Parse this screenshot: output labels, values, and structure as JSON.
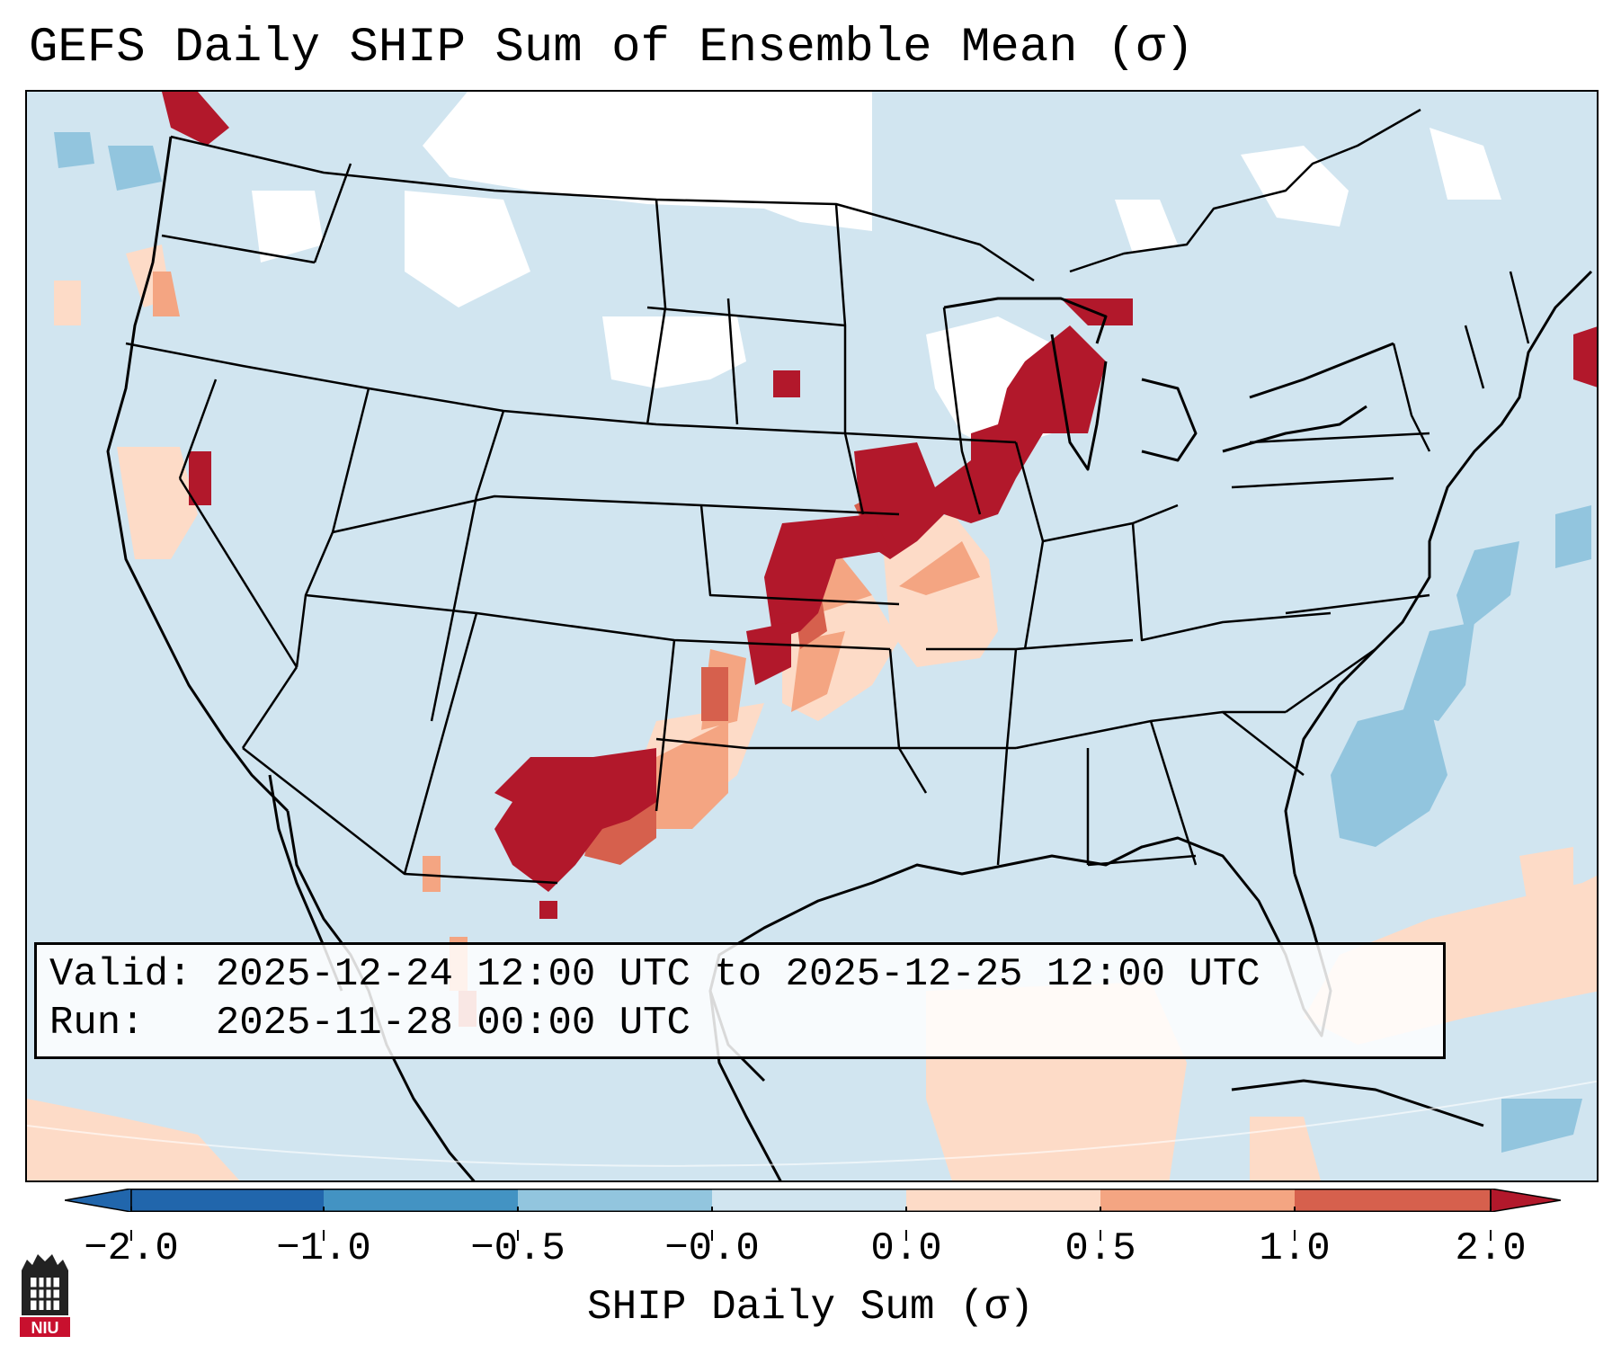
{
  "title": "GEFS Daily SHIP Sum of Ensemble Mean (σ)",
  "info": {
    "valid_label": "Valid:",
    "valid_value": "2025-12-24 12:00 UTC to 2025-12-25 12:00 UTC",
    "run_label": "Run:",
    "run_value": "2025-11-28 00:00 UTC"
  },
  "colorbar": {
    "label": "SHIP Daily Sum (σ)",
    "ticks": [
      "−2.0",
      "−1.0",
      "−0.5",
      "−0.0",
      "0.0",
      "0.5",
      "1.0",
      "2.0"
    ],
    "colors": [
      "#2166ac",
      "#4393c3",
      "#92c5de",
      "#d1e5f0",
      "#ffffff",
      "#fddbc7",
      "#f4a582",
      "#d6604d",
      "#b2182b"
    ]
  },
  "map": {
    "background_color": "#d1e5f0",
    "projection": "Lambert Conformal",
    "features": [
      "coastlines",
      "state-borders",
      "country-borders"
    ]
  },
  "logo": {
    "text": "NIU",
    "color": "#c8102e"
  }
}
